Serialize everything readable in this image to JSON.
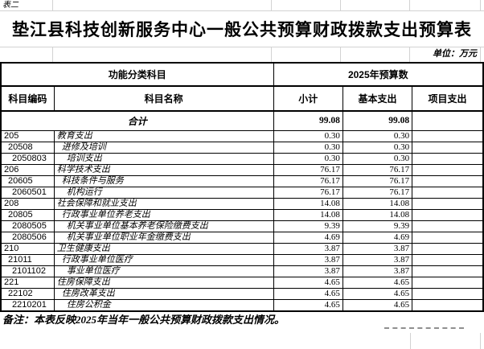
{
  "sheet": {
    "corner_label": "表二",
    "title": "垫江县科技创新服务中心一般公共预算财政拨款支出预算表",
    "unit_label": "单位：万元",
    "note": "备注：本表反映2025年当年一般公共预算财政拨款支出情况。"
  },
  "table": {
    "header": {
      "function_group": "功能分类科目",
      "budget_group": "2025年预算数",
      "col_code": "科目编码",
      "col_name": "科目名称",
      "col_subtotal": "小计",
      "col_basic": "基本支出",
      "col_project": "项目支出"
    },
    "total_row": {
      "label": "合计",
      "subtotal": "99.08",
      "basic": "99.08",
      "project": ""
    },
    "rows": [
      {
        "code": "205",
        "name": "教育支出",
        "level": 1,
        "subtotal": "0.30",
        "basic": "0.30",
        "project": ""
      },
      {
        "code": "20508",
        "name": "进修及培训",
        "level": 2,
        "subtotal": "0.30",
        "basic": "0.30",
        "project": ""
      },
      {
        "code": "2050803",
        "name": "培训支出",
        "level": 3,
        "subtotal": "0.30",
        "basic": "0.30",
        "project": ""
      },
      {
        "code": "206",
        "name": "科学技术支出",
        "level": 1,
        "subtotal": "76.17",
        "basic": "76.17",
        "project": ""
      },
      {
        "code": "20605",
        "name": "科技条件与服务",
        "level": 2,
        "subtotal": "76.17",
        "basic": "76.17",
        "project": ""
      },
      {
        "code": "2060501",
        "name": "机构运行",
        "level": 3,
        "subtotal": "76.17",
        "basic": "76.17",
        "project": ""
      },
      {
        "code": "208",
        "name": "社会保障和就业支出",
        "level": 1,
        "subtotal": "14.08",
        "basic": "14.08",
        "project": ""
      },
      {
        "code": "20805",
        "name": "行政事业单位养老支出",
        "level": 2,
        "subtotal": "14.08",
        "basic": "14.08",
        "project": ""
      },
      {
        "code": "2080505",
        "name": "机关事业单位基本养老保险缴费支出",
        "level": 3,
        "subtotal": "9.39",
        "basic": "9.39",
        "project": ""
      },
      {
        "code": "2080506",
        "name": "机关事业单位职业年金缴费支出",
        "level": 3,
        "subtotal": "4.69",
        "basic": "4.69",
        "project": ""
      },
      {
        "code": "210",
        "name": "卫生健康支出",
        "level": 1,
        "subtotal": "3.87",
        "basic": "3.87",
        "project": ""
      },
      {
        "code": "21011",
        "name": "行政事业单位医疗",
        "level": 2,
        "subtotal": "3.87",
        "basic": "3.87",
        "project": ""
      },
      {
        "code": "2101102",
        "name": "事业单位医疗",
        "level": 3,
        "subtotal": "3.87",
        "basic": "3.87",
        "project": ""
      },
      {
        "code": "221",
        "name": "住房保障支出",
        "level": 1,
        "subtotal": "4.65",
        "basic": "4.65",
        "project": ""
      },
      {
        "code": "22102",
        "name": "住房改革支出",
        "level": 2,
        "subtotal": "4.65",
        "basic": "4.65",
        "project": ""
      },
      {
        "code": "2210201",
        "name": "住房公积金",
        "level": 3,
        "subtotal": "4.65",
        "basic": "4.65",
        "project": ""
      }
    ]
  },
  "colors": {
    "border_black": "#000000",
    "grid_gray": "#d2d2d2",
    "pagebreak_gray": "#8f8f8f"
  }
}
